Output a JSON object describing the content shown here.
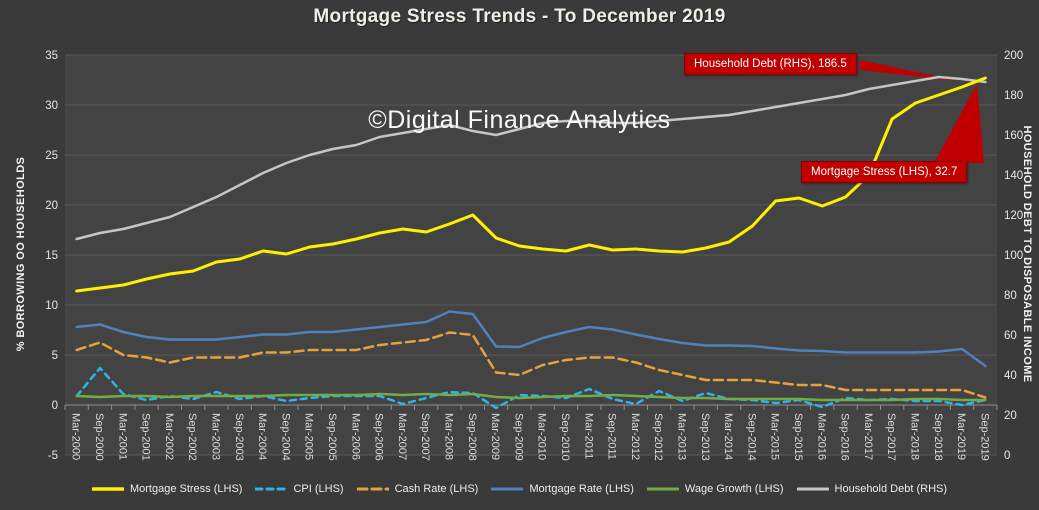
{
  "header": {
    "title": "Mortgage Stress Trends - To December 2019"
  },
  "watermark": "©Digital Finance Analytics",
  "annotations": [
    {
      "id": "household-debt",
      "text": "Household Debt (RHS), 186.5",
      "color": "#C00000"
    },
    {
      "id": "mortgage-stress",
      "text": "Mortgage Stress (LHS), 32.7",
      "color": "#C00000"
    }
  ],
  "colors": {
    "background": "#3A3A3A",
    "plot_background": "#434343",
    "gridline": "#5A5A5A",
    "axis_line": "#8F8F8F",
    "annotation_red": "#C00000",
    "text": "#ECECEC"
  },
  "chart_data": {
    "type": "line",
    "title": "Mortgage Stress Trends - To December 2019",
    "left_axis": {
      "label": "% BORROWING OO HOUSEHOLDS",
      "min": -5,
      "max": 35,
      "step": 5
    },
    "right_axis": {
      "label": "HOUSEHOLD DEBT TO DISPOSABLE INCOME",
      "min": 0,
      "max": 200,
      "step": 20
    },
    "grid": true,
    "legend_position": "bottom",
    "categories": [
      "Mar-2000",
      "Sep-2000",
      "Mar-2001",
      "Sep-2001",
      "Mar-2002",
      "Sep-2002",
      "Mar-2003",
      "Sep-2003",
      "Mar-2004",
      "Sep-2004",
      "Mar-2005",
      "Sep-2005",
      "Mar-2006",
      "Sep-2006",
      "Mar-2007",
      "Sep-2007",
      "Mar-2008",
      "Sep-2008",
      "Mar-2009",
      "Sep-2009",
      "Mar-2010",
      "Sep-2010",
      "Mar-2011",
      "Sep-2011",
      "Mar-2012",
      "Sep-2012",
      "Mar-2013",
      "Sep-2013",
      "Mar-2014",
      "Sep-2014",
      "Mar-2015",
      "Sep-2015",
      "Mar-2016",
      "Sep-2016",
      "Mar-2017",
      "Sep-2017",
      "Mar-2018",
      "Sep-2018",
      "Mar-2019",
      "Sep-2019"
    ],
    "series": [
      {
        "name": "Mortgage Stress (LHS)",
        "axis": "LHS",
        "color": "#FFF000",
        "dash": null,
        "width": 3,
        "values": [
          11.4,
          11.7,
          12.0,
          12.6,
          13.1,
          13.4,
          14.3,
          14.6,
          15.4,
          15.1,
          15.8,
          16.1,
          16.6,
          17.2,
          17.6,
          17.3,
          18.1,
          19.0,
          16.7,
          15.9,
          15.6,
          15.4,
          16.0,
          15.5,
          15.6,
          15.4,
          15.3,
          15.7,
          16.3,
          17.9,
          20.4,
          20.7,
          19.9,
          20.8,
          23.0,
          28.6,
          30.2,
          31.0,
          31.8,
          32.7
        ]
      },
      {
        "name": "CPI (LHS)",
        "axis": "LHS",
        "color": "#2FB3E8",
        "dash": "6 5",
        "width": 2.5,
        "values": [
          0.9,
          3.7,
          1.1,
          0.5,
          0.9,
          0.6,
          1.3,
          0.6,
          0.9,
          0.4,
          0.7,
          0.9,
          0.9,
          0.9,
          0.1,
          0.7,
          1.3,
          1.2,
          -0.3,
          1.0,
          0.9,
          0.7,
          1.6,
          0.6,
          0.1,
          1.4,
          0.4,
          1.2,
          0.6,
          0.5,
          0.2,
          0.5,
          -0.2,
          0.7,
          0.5,
          0.6,
          0.4,
          0.4,
          0.0,
          0.5
        ]
      },
      {
        "name": "Cash Rate (LHS)",
        "axis": "LHS",
        "color": "#E5A33C",
        "dash": "9 5",
        "width": 2.5,
        "values": [
          5.5,
          6.25,
          5.0,
          4.75,
          4.25,
          4.75,
          4.75,
          4.75,
          5.25,
          5.25,
          5.5,
          5.5,
          5.5,
          6.0,
          6.25,
          6.5,
          7.25,
          7.0,
          3.25,
          3.0,
          4.0,
          4.5,
          4.75,
          4.75,
          4.25,
          3.5,
          3.0,
          2.5,
          2.5,
          2.5,
          2.25,
          2.0,
          2.0,
          1.5,
          1.5,
          1.5,
          1.5,
          1.5,
          1.5,
          0.75
        ]
      },
      {
        "name": "Mortgage Rate (LHS)",
        "axis": "LHS",
        "color": "#4F81BD",
        "dash": null,
        "width": 2.5,
        "values": [
          7.8,
          8.05,
          7.3,
          6.8,
          6.55,
          6.55,
          6.55,
          6.8,
          7.05,
          7.05,
          7.3,
          7.3,
          7.55,
          7.8,
          8.05,
          8.3,
          9.35,
          9.1,
          5.85,
          5.8,
          6.7,
          7.3,
          7.8,
          7.55,
          7.05,
          6.6,
          6.2,
          5.95,
          5.95,
          5.9,
          5.65,
          5.45,
          5.4,
          5.25,
          5.25,
          5.25,
          5.25,
          5.35,
          5.6,
          3.9
        ]
      },
      {
        "name": "Wage Growth (LHS)",
        "axis": "LHS",
        "color": "#70AD47",
        "dash": null,
        "width": 2.5,
        "values": [
          0.9,
          0.8,
          0.9,
          0.9,
          0.8,
          0.9,
          0.9,
          0.9,
          0.9,
          1.0,
          1.0,
          1.0,
          1.0,
          1.1,
          1.0,
          1.1,
          1.0,
          1.1,
          0.8,
          0.7,
          0.8,
          0.9,
          0.9,
          1.0,
          0.9,
          0.8,
          0.7,
          0.7,
          0.6,
          0.6,
          0.6,
          0.6,
          0.5,
          0.5,
          0.5,
          0.5,
          0.6,
          0.6,
          0.5,
          0.5
        ]
      },
      {
        "name": "Household Debt (RHS)",
        "axis": "RHS",
        "color": "#C6C6C6",
        "dash": null,
        "width": 2.5,
        "values": [
          108,
          111,
          113,
          116,
          119,
          124,
          129,
          135,
          141,
          146,
          150,
          153,
          155,
          159,
          161,
          163,
          165,
          162,
          160,
          163,
          166,
          167,
          167,
          166,
          166,
          167,
          168,
          169,
          170,
          172,
          174,
          176,
          178,
          180,
          183,
          185,
          187,
          189,
          188,
          186.5
        ]
      }
    ]
  }
}
